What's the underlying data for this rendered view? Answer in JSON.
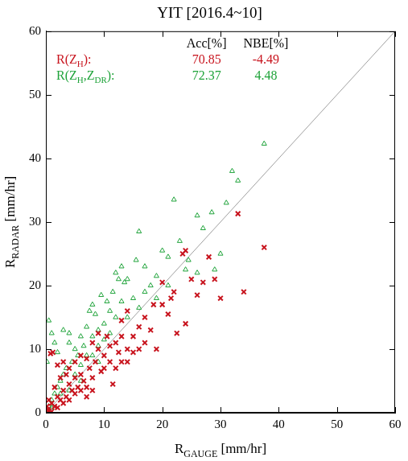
{
  "chart_data": {
    "type": "scatter",
    "title": "YIT [2016.4~10]",
    "x_label": [
      {
        "text": "R"
      },
      {
        "text": "GAUGE",
        "sub": true
      },
      {
        "text": " [mm/hr]"
      }
    ],
    "y_label": [
      {
        "text": "R"
      },
      {
        "text": "RADAR",
        "sub": true
      },
      {
        "text": " [mm/hr]"
      }
    ],
    "xlim": [
      0,
      60
    ],
    "ylim": [
      0,
      60
    ],
    "xticks": [
      0,
      10,
      20,
      30,
      40,
      50,
      60
    ],
    "yticks": [
      0,
      10,
      20,
      30,
      40,
      50,
      60
    ],
    "grid": false,
    "stats_header": [
      "Acc[%]",
      "NBE[%]"
    ],
    "reference_line": {
      "x": [
        0,
        60
      ],
      "y": [
        0,
        60
      ],
      "color": "#a0a0a0"
    },
    "series": [
      {
        "label": [
          {
            "text": "R(Z"
          },
          {
            "text": "H",
            "sub": true
          },
          {
            "text": "):"
          }
        ],
        "acc": 70.85,
        "nbe": -4.49,
        "color": "#c8141e",
        "marker": "x",
        "x": [
          37.5,
          33,
          34,
          30,
          29,
          27,
          28,
          25,
          23.5,
          22,
          21,
          24,
          22.5,
          18.5,
          20,
          17,
          16,
          19,
          18,
          15,
          14,
          13,
          12.5,
          12,
          11,
          10.5,
          10,
          9.5,
          9,
          8.5,
          8,
          7.5,
          7,
          6.5,
          6,
          5.5,
          5,
          4.5,
          4,
          3.5,
          3,
          2.5,
          2,
          1.5,
          1,
          0.5,
          0.8,
          1.2,
          2,
          3,
          4,
          0.3,
          0.2,
          1,
          2,
          3,
          4,
          5,
          6,
          7,
          8,
          9,
          10,
          11,
          12,
          13,
          14,
          15,
          16,
          17,
          14,
          13,
          20,
          21.5,
          26,
          24,
          11.5,
          6,
          5,
          2.5,
          1.5,
          0.5,
          3.5,
          7,
          8
        ],
        "y": [
          26,
          31.3,
          19,
          18,
          21,
          20.5,
          24.5,
          21,
          25,
          19,
          15.5,
          14,
          12.5,
          17,
          17,
          15,
          13.5,
          10,
          13,
          12,
          10,
          8,
          9.5,
          11,
          8,
          12,
          9,
          6.5,
          10,
          8,
          5.5,
          7,
          8.5,
          5,
          6,
          4,
          5.5,
          3.5,
          4.5,
          2.5,
          3.5,
          2,
          2.5,
          1,
          1.5,
          0.3,
          9.3,
          9.5,
          7.5,
          8,
          7,
          0.5,
          1,
          0.2,
          0.8,
          1.5,
          2,
          3,
          3.5,
          4,
          11,
          12.5,
          7,
          10.5,
          7,
          12,
          8,
          9.5,
          10,
          11,
          16,
          14.5,
          20.5,
          18,
          18.5,
          25.5,
          4.5,
          9,
          8,
          5.5,
          4,
          2,
          6,
          2.5,
          3.5
        ]
      },
      {
        "label": [
          {
            "text": "R(Z"
          },
          {
            "text": "H",
            "sub": true
          },
          {
            "text": ",Z"
          },
          {
            "text": "DR",
            "sub": true
          },
          {
            "text": "):"
          }
        ],
        "acc": 72.37,
        "nbe": 4.48,
        "color": "#1fa33a",
        "marker": "triangle",
        "x": [
          37.5,
          33,
          32,
          31,
          30,
          29,
          27,
          26,
          24,
          22,
          23,
          21,
          20,
          19,
          18,
          17,
          16,
          15.5,
          14,
          13,
          12,
          11.5,
          11,
          10.5,
          10,
          9.5,
          9,
          8.5,
          8,
          7.5,
          7,
          6.5,
          6,
          5.5,
          5,
          4.5,
          4,
          3.5,
          3,
          2.5,
          2,
          1.5,
          1,
          0.5,
          0.3,
          0.5,
          1,
          1.5,
          2,
          3,
          4,
          0.2,
          5,
          6,
          7,
          8,
          9,
          10,
          11,
          12,
          13,
          14,
          15,
          16,
          17,
          19,
          21,
          24.5,
          26,
          28.5,
          12.5,
          13.5,
          8,
          2.5,
          1,
          4,
          6,
          9
        ],
        "y": [
          42.3,
          36.5,
          38,
          33,
          25,
          22.5,
          29,
          31,
          22.5,
          33.5,
          27,
          24.5,
          25.5,
          21.5,
          20,
          19,
          28.5,
          24,
          21,
          23,
          22,
          19,
          16,
          17.5,
          14,
          18.5,
          13,
          15.5,
          12,
          16,
          13.5,
          10.5,
          12,
          9,
          10,
          8,
          11,
          7,
          6,
          5,
          4,
          3,
          2,
          1,
          0.4,
          14.5,
          12.5,
          11,
          9.5,
          13,
          12.5,
          8,
          6,
          7.5,
          9,
          9,
          10.5,
          11.5,
          12.5,
          15,
          17.5,
          15,
          18,
          16.5,
          23,
          18,
          20,
          24,
          22,
          31.5,
          21,
          20.5,
          17,
          3,
          0.8,
          3.5,
          5,
          8
        ]
      }
    ]
  }
}
